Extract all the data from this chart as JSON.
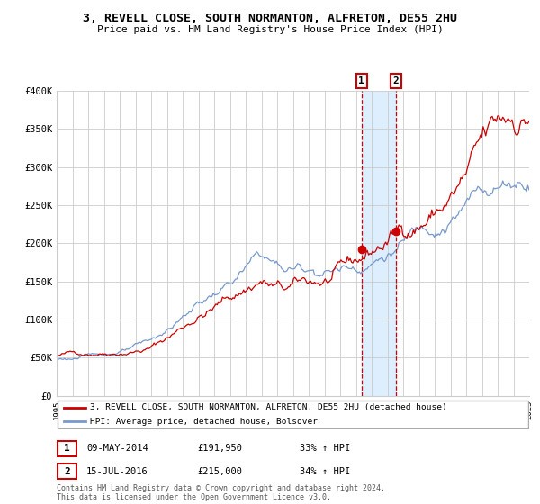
{
  "title": "3, REVELL CLOSE, SOUTH NORMANTON, ALFRETON, DE55 2HU",
  "subtitle": "Price paid vs. HM Land Registry's House Price Index (HPI)",
  "red_label": "3, REVELL CLOSE, SOUTH NORMANTON, ALFRETON, DE55 2HU (detached house)",
  "blue_label": "HPI: Average price, detached house, Bolsover",
  "transaction1_date": "09-MAY-2014",
  "transaction1_price": 191950,
  "transaction1_text": "33% ↑ HPI",
  "transaction2_date": "15-JUL-2016",
  "transaction2_price": 215000,
  "transaction2_text": "34% ↑ HPI",
  "transaction1_year": 2014.36,
  "transaction2_year": 2016.54,
  "ylim": [
    0,
    400000
  ],
  "xlim_start": 1995,
  "xlim_end": 2025,
  "footer": "Contains HM Land Registry data © Crown copyright and database right 2024.\nThis data is licensed under the Open Government Licence v3.0.",
  "red_color": "#cc0000",
  "blue_color": "#7799cc",
  "highlight_color": "#ddeeff",
  "grid_color": "#cccccc",
  "background_color": "#ffffff"
}
